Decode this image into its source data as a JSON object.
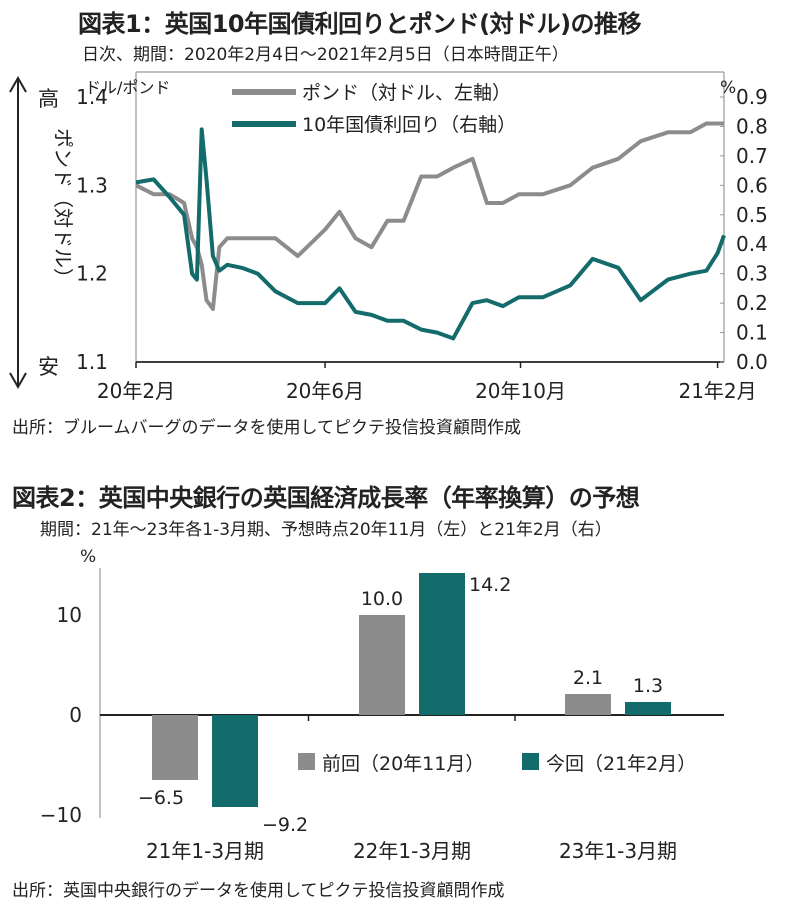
{
  "chart1": {
    "title": "図表1：英国10年国債利回りとポンド(対ドル)の推移",
    "subtitle": "日次、期間：2020年2月4日～2021年2月5日（日本時間正午）",
    "left_unit": "ドル/ポンド",
    "right_unit": "%",
    "side_label": "ポンド（対ドル）",
    "arrow_top_label": "高",
    "arrow_bottom_label": "安",
    "source": "出所：ブルームバーグのデータを使用してピクテ投信投資顧問作成",
    "colors": {
      "pound": "#8c8c8c",
      "yield": "#136b6b"
    },
    "chart_data": {
      "type": "line",
      "x_ticks": [
        "20年2月",
        "20年6月",
        "20年10月",
        "21年2月"
      ],
      "y_left_ticks": [
        "1.4",
        "1.3",
        "1.2",
        "1.1"
      ],
      "y_right_ticks": [
        "0.9",
        "0.8",
        "0.7",
        "0.6",
        "0.5",
        "0.4",
        "0.3",
        "0.2",
        "0.1",
        "0.0"
      ],
      "y_left_range": [
        1.1,
        1.4
      ],
      "y_right_range": [
        0.0,
        0.9
      ],
      "x_dates": [
        "2020-02-04",
        "2020-02-15",
        "2020-02-25",
        "2020-03-05",
        "2020-03-10",
        "2020-03-13",
        "2020-03-16",
        "2020-03-19",
        "2020-03-23",
        "2020-03-27",
        "2020-04-01",
        "2020-04-10",
        "2020-04-20",
        "2020-05-01",
        "2020-05-15",
        "2020-06-01",
        "2020-06-10",
        "2020-06-20",
        "2020-06-30",
        "2020-07-10",
        "2020-07-20",
        "2020-07-31",
        "2020-08-10",
        "2020-08-20",
        "2020-09-01",
        "2020-09-10",
        "2020-09-20",
        "2020-09-30",
        "2020-10-15",
        "2020-11-01",
        "2020-11-15",
        "2020-12-01",
        "2020-12-15",
        "2021-01-01",
        "2021-01-15",
        "2021-01-25",
        "2021-02-01",
        "2021-02-05"
      ],
      "series": [
        {
          "name": "ポンド（対ドル、左軸）",
          "axis": "left",
          "values": [
            1.3,
            1.29,
            1.29,
            1.28,
            1.24,
            1.23,
            1.21,
            1.17,
            1.16,
            1.23,
            1.24,
            1.24,
            1.24,
            1.24,
            1.22,
            1.25,
            1.27,
            1.24,
            1.23,
            1.26,
            1.26,
            1.31,
            1.31,
            1.32,
            1.33,
            1.28,
            1.28,
            1.29,
            1.29,
            1.3,
            1.32,
            1.33,
            1.35,
            1.36,
            1.36,
            1.37,
            1.37,
            1.37
          ]
        },
        {
          "name": "10年国債利回り（右軸）",
          "axis": "right",
          "values": [
            0.61,
            0.62,
            0.56,
            0.5,
            0.3,
            0.28,
            0.79,
            0.62,
            0.36,
            0.31,
            0.33,
            0.32,
            0.3,
            0.24,
            0.2,
            0.2,
            0.25,
            0.17,
            0.16,
            0.14,
            0.14,
            0.11,
            0.1,
            0.08,
            0.2,
            0.21,
            0.19,
            0.22,
            0.22,
            0.26,
            0.35,
            0.32,
            0.21,
            0.28,
            0.3,
            0.31,
            0.37,
            0.43
          ]
        }
      ]
    }
  },
  "chart2": {
    "title": "図表2：英国中央銀行の英国経済成長率（年率換算）の予想",
    "subtitle": "期間：21年～23年各1-3月期、予想時点20年11月（左）と21年2月（右）",
    "y_unit": "%",
    "source": "出所：英国中央銀行のデータを使用してピクテ投信投資顧問作成",
    "colors": {
      "previous": "#8c8c8c",
      "current": "#136b6b"
    },
    "chart_data": {
      "type": "bar",
      "categories": [
        "21年1-3月期",
        "22年1-3月期",
        "23年1-3月期"
      ],
      "series": [
        {
          "name": "前回（20年11月）",
          "values": [
            -6.5,
            10.0,
            2.1
          ],
          "labels": [
            "−6.5",
            "10.0",
            "2.1"
          ]
        },
        {
          "name": "今回（21年2月）",
          "values": [
            -9.2,
            14.2,
            1.3
          ],
          "labels": [
            "−9.2",
            "14.2",
            "1.3"
          ]
        }
      ],
      "y_ticks": [
        "10",
        "0",
        "−10"
      ],
      "ylim": [
        -10,
        15
      ]
    }
  }
}
